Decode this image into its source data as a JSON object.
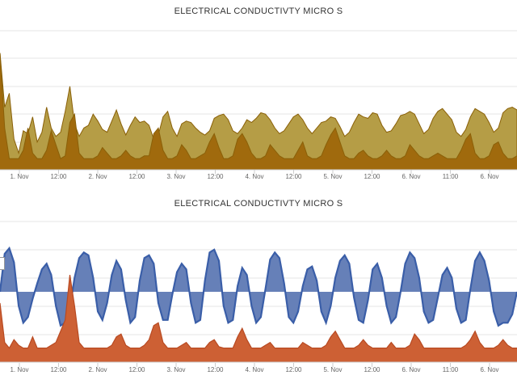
{
  "chart_data": [
    {
      "type": "area",
      "title": "ELECTRICAL CONDUCTIVTY MICRO S",
      "xlabel": "",
      "ylabel": "",
      "x_ticks": [
        "1. Nov",
        "12:00",
        "2. Nov",
        "12:00",
        "3. Nov",
        "12:00",
        "4. Nov",
        "12:00",
        "5. Nov",
        "12:00",
        "6. Nov",
        "11:00",
        "6. Nov"
      ],
      "grid": true,
      "colors": {
        "upper": "#b59d46",
        "lower": "#a06a0d",
        "line": "#8a6008"
      },
      "series": [
        {
          "values": [
            0.84,
            0.45,
            0.55,
            0.22,
            0.12,
            0.28,
            0.26,
            0.38,
            0.2,
            0.27,
            0.45,
            0.3,
            0.24,
            0.27,
            0.42,
            0.6,
            0.33,
            0.24,
            0.3,
            0.32,
            0.4,
            0.35,
            0.29,
            0.27,
            0.35,
            0.43,
            0.33,
            0.25,
            0.32,
            0.38,
            0.34,
            0.35,
            0.32,
            0.22,
            0.25,
            0.38,
            0.42,
            0.3,
            0.24,
            0.33,
            0.35,
            0.34,
            0.3,
            0.27,
            0.25,
            0.28,
            0.37,
            0.39,
            0.4,
            0.36,
            0.28,
            0.26,
            0.3,
            0.36,
            0.34,
            0.37,
            0.41,
            0.4,
            0.36,
            0.3,
            0.26,
            0.28,
            0.33,
            0.38,
            0.4,
            0.36,
            0.3,
            0.26,
            0.3,
            0.34,
            0.35,
            0.38,
            0.37,
            0.31,
            0.24,
            0.27,
            0.34,
            0.4,
            0.38,
            0.37,
            0.41,
            0.4,
            0.32,
            0.27,
            0.28,
            0.33,
            0.39,
            0.4,
            0.42,
            0.4,
            0.33,
            0.26,
            0.29,
            0.37,
            0.42,
            0.44,
            0.4,
            0.36,
            0.27,
            0.24,
            0.29,
            0.38,
            0.44,
            0.42,
            0.4,
            0.34,
            0.27,
            0.3,
            0.41,
            0.44,
            0.45,
            0.43
          ]
        },
        {
          "values": [
            0.84,
            0.3,
            0.08,
            0.08,
            0.08,
            0.14,
            0.3,
            0.12,
            0.08,
            0.08,
            0.14,
            0.28,
            0.18,
            0.08,
            0.1,
            0.34,
            0.4,
            0.12,
            0.08,
            0.08,
            0.08,
            0.1,
            0.16,
            0.12,
            0.08,
            0.08,
            0.1,
            0.14,
            0.1,
            0.08,
            0.08,
            0.1,
            0.1,
            0.26,
            0.3,
            0.14,
            0.08,
            0.08,
            0.1,
            0.18,
            0.14,
            0.08,
            0.08,
            0.1,
            0.12,
            0.2,
            0.26,
            0.16,
            0.08,
            0.08,
            0.1,
            0.22,
            0.26,
            0.2,
            0.12,
            0.08,
            0.08,
            0.1,
            0.18,
            0.14,
            0.1,
            0.08,
            0.08,
            0.08,
            0.14,
            0.2,
            0.1,
            0.08,
            0.08,
            0.1,
            0.18,
            0.25,
            0.3,
            0.2,
            0.1,
            0.08,
            0.08,
            0.12,
            0.14,
            0.1,
            0.08,
            0.08,
            0.1,
            0.14,
            0.1,
            0.08,
            0.08,
            0.1,
            0.18,
            0.14,
            0.1,
            0.08,
            0.08,
            0.1,
            0.12,
            0.1,
            0.08,
            0.08,
            0.08,
            0.14,
            0.22,
            0.26,
            0.12,
            0.08,
            0.08,
            0.1,
            0.18,
            0.2,
            0.12,
            0.08,
            0.08,
            0.1
          ]
        }
      ]
    },
    {
      "type": "area",
      "title": "ELECTRICAL CONDUCTIVTY MICRO S",
      "xlabel": "",
      "ylabel": "",
      "x_ticks": [
        "1. Nov",
        "12:00",
        "2. Nov",
        "12:00",
        "3. Nov",
        "12:00",
        "4. Nov",
        "12:00",
        "5. Nov",
        "12:00",
        "6. Nov",
        "11:00",
        "6. Nov"
      ],
      "grid": true,
      "colors": {
        "upper": "#6680b8",
        "upper_line": "#3a5ea8",
        "lower": "#cd6034",
        "lower_line": "#b84a22"
      },
      "series": [
        {
          "baseline": 0.5,
          "values": [
            0.5,
            0.77,
            0.81,
            0.71,
            0.4,
            0.28,
            0.32,
            0.45,
            0.56,
            0.66,
            0.7,
            0.62,
            0.4,
            0.26,
            0.28,
            0.38,
            0.6,
            0.74,
            0.78,
            0.76,
            0.6,
            0.36,
            0.3,
            0.42,
            0.62,
            0.72,
            0.66,
            0.44,
            0.28,
            0.32,
            0.58,
            0.74,
            0.76,
            0.7,
            0.42,
            0.3,
            0.3,
            0.48,
            0.64,
            0.7,
            0.66,
            0.42,
            0.28,
            0.3,
            0.58,
            0.78,
            0.8,
            0.72,
            0.4,
            0.28,
            0.3,
            0.54,
            0.67,
            0.62,
            0.4,
            0.28,
            0.32,
            0.52,
            0.73,
            0.78,
            0.74,
            0.56,
            0.32,
            0.28,
            0.36,
            0.54,
            0.66,
            0.68,
            0.58,
            0.36,
            0.28,
            0.4,
            0.6,
            0.72,
            0.76,
            0.7,
            0.46,
            0.3,
            0.28,
            0.44,
            0.66,
            0.7,
            0.6,
            0.4,
            0.28,
            0.32,
            0.5,
            0.7,
            0.78,
            0.74,
            0.6,
            0.36,
            0.28,
            0.3,
            0.46,
            0.62,
            0.67,
            0.6,
            0.38,
            0.28,
            0.3,
            0.52,
            0.72,
            0.78,
            0.72,
            0.58,
            0.36,
            0.26,
            0.28,
            0.28,
            0.34,
            0.5
          ]
        },
        {
          "values": [
            0.42,
            0.14,
            0.1,
            0.16,
            0.12,
            0.1,
            0.1,
            0.18,
            0.1,
            0.1,
            0.1,
            0.12,
            0.14,
            0.22,
            0.3,
            0.62,
            0.4,
            0.14,
            0.1,
            0.1,
            0.1,
            0.1,
            0.1,
            0.1,
            0.12,
            0.18,
            0.2,
            0.12,
            0.1,
            0.1,
            0.1,
            0.12,
            0.16,
            0.26,
            0.28,
            0.14,
            0.1,
            0.1,
            0.1,
            0.12,
            0.14,
            0.1,
            0.1,
            0.1,
            0.1,
            0.14,
            0.16,
            0.11,
            0.1,
            0.1,
            0.1,
            0.18,
            0.24,
            0.16,
            0.1,
            0.1,
            0.1,
            0.12,
            0.14,
            0.1,
            0.1,
            0.1,
            0.1,
            0.1,
            0.1,
            0.14,
            0.12,
            0.1,
            0.1,
            0.1,
            0.12,
            0.18,
            0.22,
            0.16,
            0.1,
            0.1,
            0.1,
            0.12,
            0.16,
            0.12,
            0.1,
            0.1,
            0.1,
            0.1,
            0.14,
            0.1,
            0.1,
            0.1,
            0.12,
            0.2,
            0.16,
            0.1,
            0.1,
            0.1,
            0.1,
            0.1,
            0.1,
            0.1,
            0.1,
            0.1,
            0.12,
            0.16,
            0.22,
            0.14,
            0.1,
            0.1,
            0.1,
            0.12,
            0.16,
            0.12,
            0.1,
            0.1
          ]
        }
      ]
    }
  ]
}
